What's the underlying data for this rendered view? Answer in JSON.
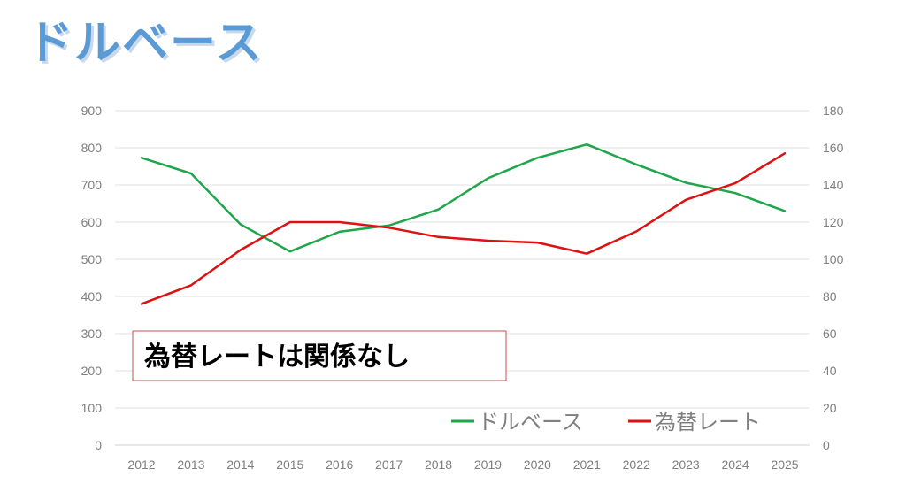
{
  "title": "ドルベース",
  "chart_data": {
    "type": "line",
    "x": [
      2012,
      2013,
      2014,
      2015,
      2016,
      2017,
      2018,
      2019,
      2020,
      2021,
      2022,
      2023,
      2024,
      2025
    ],
    "series": [
      {
        "name": "ドルベース",
        "axis": "left",
        "color": "#1fa64a",
        "values": [
          773,
          731,
          594,
          521,
          574,
          591,
          634,
          718,
          773,
          809,
          755,
          706,
          678,
          630
        ]
      },
      {
        "name": "為替レート",
        "axis": "right",
        "color": "#dd1111",
        "values": [
          76,
          86,
          105,
          120,
          120,
          117,
          112,
          110,
          109,
          103,
          115,
          132,
          141,
          157
        ]
      }
    ],
    "y_left": {
      "min": 0,
      "max": 900,
      "ticks": [
        0,
        100,
        200,
        300,
        400,
        500,
        600,
        700,
        800,
        900
      ]
    },
    "y_right": {
      "min": 0,
      "max": 180,
      "ticks": [
        0,
        20,
        40,
        60,
        80,
        100,
        120,
        140,
        160,
        180
      ]
    },
    "grid": true,
    "legend_position": "bottom-right",
    "annotation": "為替レートは関係なし"
  }
}
